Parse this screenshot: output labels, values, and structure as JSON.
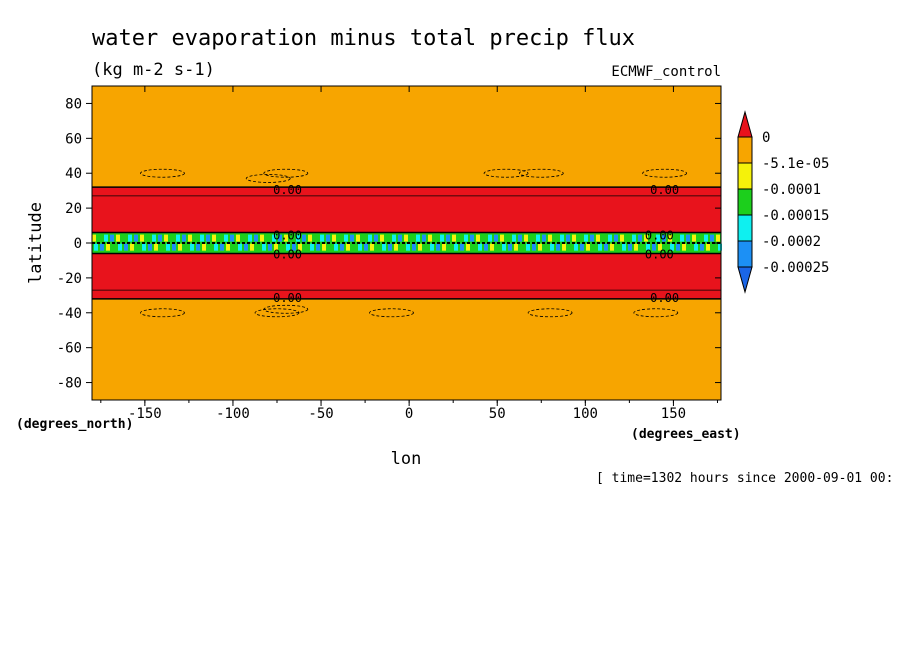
{
  "chart_data": {
    "type": "heatmap",
    "title": "water evaporation minus total precip flux",
    "subtitle": "(kg m-2 s-1)",
    "dataset_label": "ECMWF_control",
    "xlabel": "lon",
    "ylabel": "latitude",
    "x_units": "(degrees_east)",
    "y_units": "(degrees_north)",
    "time_label": "[ time=1302 hours since 2000-09-01 00:",
    "xlim": [
      -180,
      177
    ],
    "ylim": [
      -90,
      90
    ],
    "x_ticks": [
      -150,
      -100,
      -50,
      0,
      50,
      100,
      150
    ],
    "x_tick_labels": [
      "-150",
      "-100",
      "-50",
      "0",
      "50",
      "100",
      "150"
    ],
    "y_ticks": [
      80,
      60,
      40,
      20,
      0,
      -20,
      -40,
      -60,
      -80
    ],
    "y_tick_labels": [
      "80",
      "60",
      "40",
      "20",
      "0",
      "-20",
      "-40",
      "-60",
      "-80"
    ],
    "colorbar": {
      "levels": [
        "0",
        "-5.1e-05",
        "-0.0001",
        "-0.00015",
        "-0.0002",
        "-0.00025"
      ],
      "colors": [
        "#e8131c",
        "#f7a500",
        "#f5f20a",
        "#1ccf1c",
        "#0ef0f0",
        "#1c90f5",
        "#1a66e8"
      ]
    },
    "bands": [
      {
        "lat_range": [
          32,
          90
        ],
        "level": "-5.1e-05 to 0",
        "color": "#f7a500"
      },
      {
        "lat_range": [
          6,
          32
        ],
        "level": "> 0",
        "color": "#e8131c"
      },
      {
        "lat_range": [
          -6,
          6
        ],
        "level": "-0.0001 to -0.00025",
        "color": "#0ef0f0"
      },
      {
        "lat_range": [
          -32,
          -6
        ],
        "level": "> 0",
        "color": "#e8131c"
      },
      {
        "lat_range": [
          -90,
          -32
        ],
        "level": "-5.1e-05 to 0",
        "color": "#f7a500"
      }
    ],
    "contour_labels": [
      {
        "text": "0.00",
        "lon": -69,
        "lat": 31
      },
      {
        "text": "0.00",
        "lon": 145,
        "lat": 31
      },
      {
        "text": "0.00",
        "lon": -69,
        "lat": -31
      },
      {
        "text": "0.00",
        "lon": 145,
        "lat": -31
      },
      {
        "text": "0.00",
        "lon": -69,
        "lat": 5
      },
      {
        "text": "0.00",
        "lon": -69,
        "lat": -6
      },
      {
        "text": "0.00",
        "lon": 142,
        "lat": 5
      },
      {
        "text": "0.00",
        "lon": 142,
        "lat": -6
      }
    ]
  }
}
